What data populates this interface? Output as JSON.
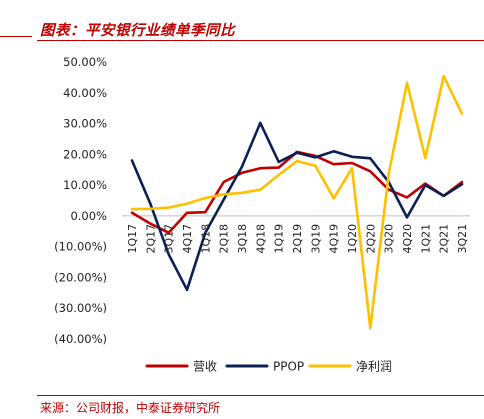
{
  "header": {
    "title": "图表：平安银行业绩单季同比"
  },
  "source": {
    "text": "来源：公司财报，中泰证券研究所"
  },
  "colors": {
    "accent": "#c00000"
  },
  "chart_data": {
    "type": "line",
    "categories": [
      "1Q17",
      "2Q17",
      "3Q17",
      "4Q17",
      "1Q18",
      "2Q18",
      "3Q18",
      "4Q18",
      "1Q19",
      "2Q19",
      "3Q19",
      "4Q19",
      "1Q20",
      "2Q20",
      "3Q20",
      "4Q20",
      "1Q21",
      "2Q21",
      "3Q21"
    ],
    "ylim": [
      -0.4,
      0.5
    ],
    "yticks": [
      0.5,
      0.4,
      0.3,
      0.2,
      0.1,
      0.0,
      -0.1,
      -0.2,
      -0.3,
      -0.4
    ],
    "ytick_labels": [
      "50.00%",
      "40.00%",
      "30.00%",
      "20.00%",
      "10.00%",
      "0.00%",
      "(10.00%)",
      "(20.00%)",
      "(30.00%)",
      "(40.00%)"
    ],
    "grid": false,
    "legend_position": "bottom",
    "series": [
      {
        "name": "营收",
        "color": "#c00000",
        "values": [
          0.01,
          -0.025,
          -0.055,
          0.01,
          0.012,
          0.11,
          0.14,
          0.155,
          0.157,
          0.208,
          0.195,
          0.168,
          0.172,
          0.145,
          0.085,
          0.06,
          0.105,
          0.065,
          0.11
        ]
      },
      {
        "name": "PPOP",
        "color": "#0b1f55",
        "values": [
          0.18,
          0.04,
          -0.125,
          -0.24,
          -0.055,
          0.053,
          0.16,
          0.302,
          0.175,
          0.205,
          0.19,
          0.21,
          0.192,
          0.187,
          0.11,
          -0.005,
          0.1,
          0.065,
          0.103
        ]
      },
      {
        "name": "净利润",
        "color": "#ffc000",
        "values": [
          0.022,
          0.023,
          0.027,
          0.04,
          0.058,
          0.07,
          0.075,
          0.085,
          0.133,
          0.178,
          0.163,
          0.057,
          0.155,
          -0.365,
          0.137,
          0.432,
          0.188,
          0.454,
          0.332
        ]
      }
    ]
  }
}
